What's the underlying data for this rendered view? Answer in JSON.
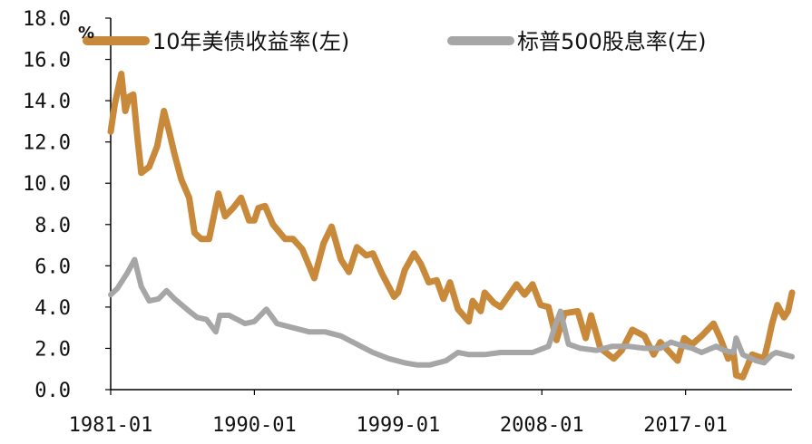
{
  "chart_data": {
    "type": "line",
    "title": "",
    "xlabel": "",
    "ylabel": "%",
    "ylim": [
      0,
      18
    ],
    "yticks": [
      "0.0",
      "2.0",
      "4.0",
      "6.0",
      "8.0",
      "10.0",
      "12.0",
      "14.0",
      "16.0",
      "18.0"
    ],
    "xticks": [
      "1981-01",
      "1990-01",
      "1999-01",
      "2008-01",
      "2017-01"
    ],
    "xlim": [
      "1981-01",
      "2023-09"
    ],
    "grid": false,
    "legend_position": "top",
    "series": [
      {
        "name": "10年美债收益率(左)",
        "color": "#C8893A",
        "points": [
          [
            "1981-01",
            12.5
          ],
          [
            "1981-04",
            13.8
          ],
          [
            "1981-09",
            15.3
          ],
          [
            "1981-12",
            13.5
          ],
          [
            "1982-03",
            14.2
          ],
          [
            "1982-06",
            14.3
          ],
          [
            "1982-09",
            12.3
          ],
          [
            "1982-12",
            10.5
          ],
          [
            "1983-06",
            10.8
          ],
          [
            "1983-12",
            11.8
          ],
          [
            "1984-05",
            13.5
          ],
          [
            "1984-09",
            12.5
          ],
          [
            "1985-01",
            11.4
          ],
          [
            "1985-06",
            10.2
          ],
          [
            "1985-12",
            9.3
          ],
          [
            "1986-04",
            7.6
          ],
          [
            "1986-09",
            7.3
          ],
          [
            "1987-03",
            7.3
          ],
          [
            "1987-10",
            9.5
          ],
          [
            "1988-03",
            8.4
          ],
          [
            "1988-09",
            8.8
          ],
          [
            "1989-03",
            9.3
          ],
          [
            "1989-09",
            8.2
          ],
          [
            "1990-01",
            8.2
          ],
          [
            "1990-04",
            8.8
          ],
          [
            "1990-09",
            8.9
          ],
          [
            "1991-03",
            8.0
          ],
          [
            "1991-12",
            7.3
          ],
          [
            "1992-06",
            7.3
          ],
          [
            "1993-01",
            6.8
          ],
          [
            "1993-10",
            5.4
          ],
          [
            "1994-05",
            7.1
          ],
          [
            "1994-11",
            7.9
          ],
          [
            "1995-06",
            6.3
          ],
          [
            "1995-12",
            5.7
          ],
          [
            "1996-06",
            6.9
          ],
          [
            "1997-01",
            6.5
          ],
          [
            "1997-06",
            6.6
          ],
          [
            "1998-01",
            5.6
          ],
          [
            "1998-10",
            4.5
          ],
          [
            "1999-01",
            4.7
          ],
          [
            "1999-06",
            5.8
          ],
          [
            "2000-01",
            6.6
          ],
          [
            "2000-06",
            6.1
          ],
          [
            "2000-12",
            5.2
          ],
          [
            "2001-06",
            5.3
          ],
          [
            "2001-11",
            4.4
          ],
          [
            "2002-04",
            5.2
          ],
          [
            "2002-10",
            3.9
          ],
          [
            "2003-06",
            3.3
          ],
          [
            "2003-09",
            4.3
          ],
          [
            "2004-03",
            3.8
          ],
          [
            "2004-06",
            4.7
          ],
          [
            "2005-01",
            4.2
          ],
          [
            "2005-06",
            4.0
          ],
          [
            "2006-06",
            5.1
          ],
          [
            "2006-12",
            4.6
          ],
          [
            "2007-06",
            5.1
          ],
          [
            "2007-12",
            4.1
          ],
          [
            "2008-06",
            4.0
          ],
          [
            "2008-12",
            2.4
          ],
          [
            "2009-06",
            3.7
          ],
          [
            "2010-04",
            3.8
          ],
          [
            "2010-10",
            2.5
          ],
          [
            "2011-02",
            3.6
          ],
          [
            "2011-09",
            2.0
          ],
          [
            "2012-07",
            1.5
          ],
          [
            "2013-01",
            1.9
          ],
          [
            "2013-09",
            2.9
          ],
          [
            "2014-06",
            2.6
          ],
          [
            "2015-01",
            1.7
          ],
          [
            "2015-06",
            2.3
          ],
          [
            "2016-07",
            1.4
          ],
          [
            "2016-12",
            2.5
          ],
          [
            "2017-06",
            2.2
          ],
          [
            "2018-01",
            2.6
          ],
          [
            "2018-10",
            3.2
          ],
          [
            "2019-03",
            2.5
          ],
          [
            "2019-09",
            1.5
          ],
          [
            "2020-01",
            1.8
          ],
          [
            "2020-03",
            0.7
          ],
          [
            "2020-08",
            0.6
          ],
          [
            "2021-03",
            1.7
          ],
          [
            "2021-12",
            1.5
          ],
          [
            "2022-03",
            2.3
          ],
          [
            "2022-06",
            3.2
          ],
          [
            "2022-10",
            4.1
          ],
          [
            "2023-03",
            3.5
          ],
          [
            "2023-06",
            3.8
          ],
          [
            "2023-09",
            4.7
          ]
        ]
      },
      {
        "name": "标普500股息率(左)",
        "color": "#A6A6A6",
        "points": [
          [
            "1981-01",
            4.6
          ],
          [
            "1981-06",
            4.9
          ],
          [
            "1982-01",
            5.6
          ],
          [
            "1982-07",
            6.3
          ],
          [
            "1982-12",
            5.0
          ],
          [
            "1983-06",
            4.3
          ],
          [
            "1984-01",
            4.4
          ],
          [
            "1984-07",
            4.8
          ],
          [
            "1985-01",
            4.4
          ],
          [
            "1985-12",
            3.8
          ],
          [
            "1986-06",
            3.5
          ],
          [
            "1987-01",
            3.4
          ],
          [
            "1987-08",
            2.8
          ],
          [
            "1987-11",
            3.6
          ],
          [
            "1988-06",
            3.6
          ],
          [
            "1989-06",
            3.2
          ],
          [
            "1990-01",
            3.3
          ],
          [
            "1990-10",
            3.9
          ],
          [
            "1991-06",
            3.2
          ],
          [
            "1992-06",
            3.0
          ],
          [
            "1993-06",
            2.8
          ],
          [
            "1994-06",
            2.8
          ],
          [
            "1995-06",
            2.6
          ],
          [
            "1996-06",
            2.2
          ],
          [
            "1997-06",
            1.8
          ],
          [
            "1998-06",
            1.5
          ],
          [
            "1999-06",
            1.3
          ],
          [
            "2000-03",
            1.2
          ],
          [
            "2001-01",
            1.2
          ],
          [
            "2002-01",
            1.4
          ],
          [
            "2002-10",
            1.8
          ],
          [
            "2003-06",
            1.7
          ],
          [
            "2004-06",
            1.7
          ],
          [
            "2005-06",
            1.8
          ],
          [
            "2006-06",
            1.8
          ],
          [
            "2007-06",
            1.8
          ],
          [
            "2008-06",
            2.1
          ],
          [
            "2008-11",
            3.1
          ],
          [
            "2009-03",
            3.8
          ],
          [
            "2009-09",
            2.2
          ],
          [
            "2010-06",
            2.0
          ],
          [
            "2011-06",
            1.9
          ],
          [
            "2012-06",
            2.1
          ],
          [
            "2013-06",
            2.1
          ],
          [
            "2014-06",
            2.0
          ],
          [
            "2015-06",
            2.0
          ],
          [
            "2016-02",
            2.3
          ],
          [
            "2016-12",
            2.1
          ],
          [
            "2017-06",
            2.0
          ],
          [
            "2018-01",
            1.8
          ],
          [
            "2018-12",
            2.1
          ],
          [
            "2019-06",
            1.9
          ],
          [
            "2020-01",
            1.8
          ],
          [
            "2020-03",
            2.5
          ],
          [
            "2020-08",
            1.7
          ],
          [
            "2021-06",
            1.4
          ],
          [
            "2021-12",
            1.3
          ],
          [
            "2022-06",
            1.7
          ],
          [
            "2022-09",
            1.8
          ],
          [
            "2023-03",
            1.7
          ],
          [
            "2023-09",
            1.6
          ]
        ]
      }
    ]
  }
}
